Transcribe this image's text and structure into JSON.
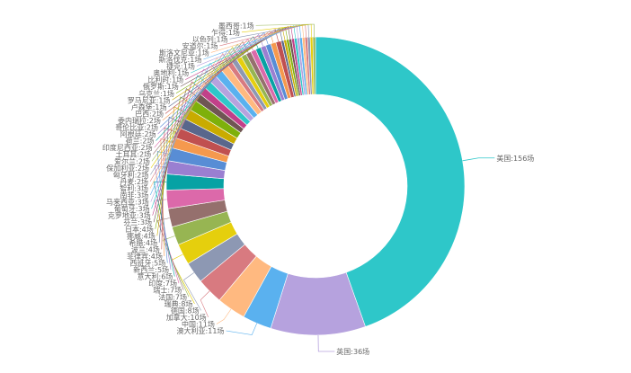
{
  "chart_data": {
    "type": "pie",
    "variant": "donut",
    "label_suffix": "场",
    "slices": [
      {
        "name": "美国",
        "value": 156,
        "color": "#2ec7c9"
      },
      {
        "name": "英国",
        "value": 36,
        "color": "#b6a2de"
      },
      {
        "name": "澳大利亚",
        "value": 11,
        "color": "#5ab1ef"
      },
      {
        "name": "中国",
        "value": 11,
        "color": "#ffb980"
      },
      {
        "name": "加拿大",
        "value": 10,
        "color": "#d87a80"
      },
      {
        "name": "德国",
        "value": 8,
        "color": "#8d98b3"
      },
      {
        "name": "瑞典",
        "value": 8,
        "color": "#e5cf0d"
      },
      {
        "name": "法国",
        "value": 7,
        "color": "#97b552"
      },
      {
        "name": "瑞士",
        "value": 7,
        "color": "#95706d"
      },
      {
        "name": "印度",
        "value": 7,
        "color": "#dc69aa"
      },
      {
        "name": "意大利",
        "value": 6,
        "color": "#07a2a4"
      },
      {
        "name": "新西兰",
        "value": 5,
        "color": "#9a7fd1"
      },
      {
        "name": "西班牙",
        "value": 5,
        "color": "#588dd5"
      },
      {
        "name": "菲律宾",
        "value": 4,
        "color": "#f5994e"
      },
      {
        "name": "波兰",
        "value": 4,
        "color": "#c05050"
      },
      {
        "name": "希腊",
        "value": 4,
        "color": "#59678c"
      },
      {
        "name": "挪威",
        "value": 4,
        "color": "#c9ab00"
      },
      {
        "name": "日本",
        "value": 4,
        "color": "#7eb00a"
      },
      {
        "name": "芬兰",
        "value": 3,
        "color": "#6f5553"
      },
      {
        "name": "克罗地亚",
        "value": 3,
        "color": "#c14089"
      },
      {
        "name": "葡萄牙",
        "value": 3,
        "color": "#2ec7c9"
      },
      {
        "name": "马来西亚",
        "value": 3,
        "color": "#b6a2de"
      },
      {
        "name": "南非",
        "value": 3,
        "color": "#5ab1ef"
      },
      {
        "name": "智利",
        "value": 3,
        "color": "#ffb980"
      },
      {
        "name": "丹麦",
        "value": 2,
        "color": "#d87a80"
      },
      {
        "name": "匈牙利",
        "value": 2,
        "color": "#8d98b3"
      },
      {
        "name": "保加利亚",
        "value": 2,
        "color": "#e5cf0d"
      },
      {
        "name": "爱尔兰",
        "value": 2,
        "color": "#97b552"
      },
      {
        "name": "土耳其",
        "value": 2,
        "color": "#95706d"
      },
      {
        "name": "印度尼西亚",
        "value": 2,
        "color": "#dc69aa"
      },
      {
        "name": "荷兰",
        "value": 2,
        "color": "#07a2a4"
      },
      {
        "name": "阿根廷",
        "value": 2,
        "color": "#9a7fd1"
      },
      {
        "name": "哥伦比亚",
        "value": 2,
        "color": "#588dd5"
      },
      {
        "name": "委内瑞拉",
        "value": 2,
        "color": "#f5994e"
      },
      {
        "name": "巴西",
        "value": 2,
        "color": "#c05050"
      },
      {
        "name": "卢森堡",
        "value": 1,
        "color": "#59678c"
      },
      {
        "name": "罗马尼亚",
        "value": 1,
        "color": "#c9ab00"
      },
      {
        "name": "乌克兰",
        "value": 1,
        "color": "#7eb00a"
      },
      {
        "name": "俄罗斯",
        "value": 1,
        "color": "#6f5553"
      },
      {
        "name": "比利时",
        "value": 1,
        "color": "#c14089"
      },
      {
        "name": "奥地利",
        "value": 1,
        "color": "#2ec7c9"
      },
      {
        "name": "捷克",
        "value": 1,
        "color": "#b6a2de"
      },
      {
        "name": "斯洛伐克",
        "value": 1,
        "color": "#5ab1ef"
      },
      {
        "name": "斯洛文尼亚",
        "value": 1,
        "color": "#ffb980"
      },
      {
        "name": "安道尔",
        "value": 1,
        "color": "#d87a80"
      },
      {
        "name": "以色列",
        "value": 1,
        "color": "#8d98b3"
      },
      {
        "name": "乍得",
        "value": 1,
        "color": "#e5cf0d"
      },
      {
        "name": "墨西哥",
        "value": 1,
        "color": "#97b552"
      }
    ]
  }
}
